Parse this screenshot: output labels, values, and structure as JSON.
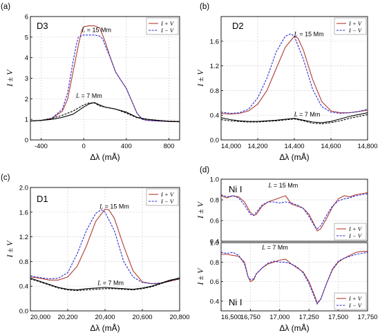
{
  "colors": {
    "red": "#b03a2e",
    "blue": "#2b2bd6",
    "black": "#000000",
    "grid": "#cfcfcf"
  },
  "chart_data": [
    {
      "panel_label": "(a)",
      "title": "D3",
      "type": "line",
      "xlabel": "Δλ (mÅ)",
      "ylabel": "I ± V",
      "xlim": [
        -500,
        900
      ],
      "ylim": [
        0,
        6
      ],
      "xticks": [
        -400,
        0,
        400,
        800
      ],
      "xtick_labels": [
        "-400",
        "0",
        "400",
        "800"
      ],
      "yticks": [
        0,
        1,
        2,
        3,
        4,
        5,
        6
      ],
      "ytick_labels": [
        "0",
        "1",
        "2",
        "3",
        "4",
        "5",
        "6"
      ],
      "annotations": [
        {
          "text": "L = 15 Mm",
          "x": 120,
          "y": 5.25
        },
        {
          "text": "L = 7 Mm",
          "x": 50,
          "y": 2.05
        }
      ],
      "legend": {
        "entries": [
          "I + V",
          "I − V"
        ],
        "position": "top-right"
      },
      "series": [
        {
          "name": "I + V",
          "group": "L = 15 Mm",
          "color": "#b03a2e",
          "dash": "solid",
          "x": [
            -500,
            -400,
            -300,
            -200,
            -150,
            -100,
            -50,
            -20,
            0,
            50,
            100,
            150,
            200,
            250,
            300,
            350,
            400,
            450,
            500,
            550,
            600,
            700,
            800,
            900
          ],
          "y": [
            0.92,
            0.95,
            1.05,
            1.4,
            2.0,
            3.3,
            4.6,
            5.3,
            5.5,
            5.55,
            5.55,
            5.45,
            4.8,
            4.0,
            3.3,
            2.9,
            2.5,
            1.9,
            1.3,
            1.0,
            0.95,
            0.92,
            0.9,
            0.9
          ]
        },
        {
          "name": "I − V",
          "group": "L = 15 Mm",
          "color": "#2b2bd6",
          "dash": "dashed",
          "x": [
            -500,
            -400,
            -300,
            -200,
            -150,
            -100,
            -70,
            -50,
            0,
            50,
            100,
            150,
            180,
            200,
            250,
            300,
            350,
            400,
            450,
            500,
            550,
            600,
            700,
            800,
            900
          ],
          "y": [
            0.92,
            0.95,
            1.05,
            1.5,
            2.3,
            3.8,
            4.6,
            5.0,
            5.1,
            5.1,
            5.1,
            5.05,
            4.9,
            4.6,
            4.0,
            3.3,
            2.9,
            2.5,
            1.9,
            1.3,
            1.0,
            0.95,
            0.92,
            0.9,
            0.9
          ]
        },
        {
          "name": "I + V",
          "group": "L = 7 Mm",
          "color": "#000000",
          "dash": "solid",
          "x": [
            -500,
            -400,
            -300,
            -200,
            -100,
            0,
            50,
            100,
            150,
            200,
            250,
            300,
            400,
            500,
            600,
            700,
            800,
            900
          ],
          "y": [
            0.92,
            0.95,
            1.0,
            1.1,
            1.25,
            1.6,
            1.75,
            1.82,
            1.7,
            1.6,
            1.55,
            1.5,
            1.35,
            1.1,
            1.0,
            0.95,
            0.9,
            0.88
          ]
        },
        {
          "name": "I − V",
          "group": "L = 7 Mm",
          "color": "#000000",
          "dash": "dashed",
          "x": [
            -500,
            -400,
            -300,
            -200,
            -100,
            0,
            50,
            100,
            150,
            200,
            250,
            300,
            400,
            500,
            600,
            700,
            800,
            900
          ],
          "y": [
            0.92,
            0.95,
            1.05,
            1.2,
            1.4,
            1.7,
            1.8,
            1.8,
            1.65,
            1.6,
            1.55,
            1.5,
            1.3,
            1.08,
            1.0,
            0.95,
            0.92,
            0.9
          ]
        }
      ]
    },
    {
      "panel_label": "(b)",
      "title": "D2",
      "type": "line",
      "xlabel": "Δλ (mÅ)",
      "ylabel": "I ± V",
      "xlim": [
        14000,
        14800
      ],
      "ylim": [
        0,
        2
      ],
      "xticks": [
        14000,
        14200,
        14400,
        14600,
        14800
      ],
      "xtick_labels": [
        "14,000",
        "14,200",
        "14,400",
        "14,600",
        "14,800"
      ],
      "yticks": [
        0.0,
        0.4,
        0.8,
        1.2,
        1.6
      ],
      "ytick_labels": [
        "0.0",
        "0.4",
        "0.8",
        "1.2",
        "1.6"
      ],
      "annotations": [
        {
          "text": "L = 15 Mm",
          "x": 14480,
          "y": 1.68
        },
        {
          "text": "L = 7 Mm",
          "x": 14470,
          "y": 0.38
        }
      ],
      "legend": {
        "entries": [
          "I + V",
          "I − V"
        ],
        "position": "top-right"
      },
      "series": [
        {
          "name": "I + V",
          "group": "L = 15 Mm",
          "color": "#b03a2e",
          "dash": "solid",
          "x": [
            14000,
            14050,
            14100,
            14150,
            14200,
            14250,
            14300,
            14350,
            14400,
            14420,
            14450,
            14500,
            14550,
            14600,
            14650,
            14700,
            14750,
            14800
          ],
          "y": [
            0.43,
            0.42,
            0.43,
            0.47,
            0.58,
            0.8,
            1.15,
            1.5,
            1.68,
            1.65,
            1.45,
            0.98,
            0.62,
            0.47,
            0.44,
            0.44,
            0.46,
            0.48
          ]
        },
        {
          "name": "I − V",
          "group": "L = 15 Mm",
          "color": "#2b2bd6",
          "dash": "dashed",
          "x": [
            14000,
            14050,
            14100,
            14150,
            14200,
            14250,
            14300,
            14350,
            14380,
            14400,
            14450,
            14500,
            14550,
            14600,
            14650,
            14700,
            14750,
            14800
          ],
          "y": [
            0.45,
            0.43,
            0.44,
            0.5,
            0.68,
            1.0,
            1.42,
            1.68,
            1.72,
            1.68,
            1.3,
            0.82,
            0.54,
            0.45,
            0.43,
            0.44,
            0.46,
            0.5
          ]
        },
        {
          "name": "I + V",
          "group": "L = 7 Mm",
          "color": "#000000",
          "dash": "solid",
          "x": [
            14000,
            14050,
            14100,
            14150,
            14200,
            14300,
            14400,
            14450,
            14500,
            14550,
            14600,
            14650,
            14700,
            14800
          ],
          "y": [
            0.36,
            0.33,
            0.31,
            0.3,
            0.3,
            0.32,
            0.35,
            0.32,
            0.29,
            0.28,
            0.3,
            0.34,
            0.38,
            0.44
          ]
        },
        {
          "name": "I − V",
          "group": "L = 7 Mm",
          "color": "#000000",
          "dash": "dashed",
          "x": [
            14000,
            14050,
            14100,
            14150,
            14200,
            14300,
            14400,
            14450,
            14500,
            14550,
            14600,
            14650,
            14700,
            14800
          ],
          "y": [
            0.33,
            0.31,
            0.3,
            0.29,
            0.29,
            0.31,
            0.34,
            0.31,
            0.27,
            0.26,
            0.28,
            0.31,
            0.35,
            0.41
          ]
        }
      ]
    },
    {
      "panel_label": "(c)",
      "title": "D1",
      "type": "line",
      "xlabel": "Δλ (mÅ)",
      "ylabel": "I ± V",
      "xlim": [
        20000,
        20800
      ],
      "ylim": [
        0,
        2
      ],
      "xticks": [
        20000,
        20200,
        20400,
        20600,
        20800
      ],
      "xtick_labels": [
        "20,000",
        "20,200",
        "20,400",
        "20,600",
        "20,800"
      ],
      "yticks": [
        0.0,
        0.4,
        0.8,
        1.2,
        1.6,
        2.0
      ],
      "ytick_labels": [
        "0.0",
        "0.4",
        "0.8",
        "1.2",
        "1.6",
        "2.0"
      ],
      "annotations": [
        {
          "text": "L = 15 Mm",
          "x": 20450,
          "y": 1.66
        },
        {
          "text": "L = 7 Mm",
          "x": 20430,
          "y": 0.42
        }
      ],
      "legend": {
        "entries": [
          "I + V",
          "I − V"
        ],
        "position": "top-right"
      },
      "series": [
        {
          "name": "I + V",
          "group": "L = 15 Mm",
          "color": "#b03a2e",
          "dash": "solid",
          "x": [
            20000,
            20050,
            20100,
            20150,
            20200,
            20250,
            20300,
            20350,
            20400,
            20420,
            20450,
            20500,
            20550,
            20600,
            20650,
            20700,
            20750,
            20800
          ],
          "y": [
            0.55,
            0.53,
            0.5,
            0.5,
            0.55,
            0.72,
            1.05,
            1.45,
            1.65,
            1.64,
            1.5,
            1.05,
            0.65,
            0.47,
            0.44,
            0.45,
            0.48,
            0.52
          ]
        },
        {
          "name": "I − V",
          "group": "L = 15 Mm",
          "color": "#2b2bd6",
          "dash": "dashed",
          "x": [
            20000,
            20050,
            20100,
            20150,
            20200,
            20250,
            20300,
            20350,
            20380,
            20400,
            20450,
            20500,
            20550,
            20600,
            20650,
            20700,
            20750,
            20800
          ],
          "y": [
            0.57,
            0.54,
            0.52,
            0.53,
            0.62,
            0.92,
            1.3,
            1.58,
            1.64,
            1.6,
            1.3,
            0.8,
            0.55,
            0.46,
            0.44,
            0.45,
            0.49,
            0.54
          ]
        },
        {
          "name": "I + V",
          "group": "L = 7 Mm",
          "color": "#000000",
          "dash": "solid",
          "x": [
            20000,
            20050,
            20100,
            20150,
            20200,
            20250,
            20300,
            20350,
            20400,
            20450,
            20500,
            20550,
            20600,
            20650,
            20700,
            20750,
            20800
          ],
          "y": [
            0.53,
            0.48,
            0.43,
            0.38,
            0.35,
            0.34,
            0.36,
            0.37,
            0.38,
            0.37,
            0.36,
            0.35,
            0.37,
            0.4,
            0.45,
            0.5,
            0.53
          ]
        },
        {
          "name": "I − V",
          "group": "L = 7 Mm",
          "color": "#000000",
          "dash": "dashed",
          "x": [
            20000,
            20050,
            20100,
            20150,
            20200,
            20250,
            20300,
            20350,
            20400,
            20450,
            20500,
            20550,
            20600,
            20650,
            20700,
            20750,
            20800
          ],
          "y": [
            0.52,
            0.47,
            0.42,
            0.37,
            0.34,
            0.33,
            0.34,
            0.35,
            0.36,
            0.36,
            0.35,
            0.34,
            0.36,
            0.39,
            0.44,
            0.49,
            0.52
          ]
        }
      ]
    },
    {
      "panel_label": "(d)",
      "title": "Ni I",
      "type": "line",
      "xlabel": "",
      "ylabel": "I ± V",
      "xlim": [
        16500,
        17750
      ],
      "ylim": [
        0.4,
        1.0
      ],
      "yticks": [
        0.4,
        0.6,
        0.8,
        1.0
      ],
      "ytick_labels": [
        "0.4",
        "0.6",
        "0.8",
        "1.0"
      ],
      "annotations": [
        {
          "text": "L = 15 Mm",
          "x": 17030,
          "y": 0.92
        }
      ],
      "legend": {
        "entries": [
          "I + V",
          "I − V"
        ],
        "position": "bottom-right"
      },
      "series": [
        {
          "name": "I + V",
          "group": "L = 15 Mm",
          "color": "#b03a2e",
          "dash": "solid",
          "x": [
            16500,
            16550,
            16600,
            16650,
            16700,
            16750,
            16780,
            16800,
            16850,
            16900,
            16950,
            17000,
            17050,
            17100,
            17150,
            17200,
            17250,
            17300,
            17320,
            17350,
            17400,
            17450,
            17500,
            17550,
            17600,
            17650,
            17700,
            17750
          ],
          "y": [
            0.84,
            0.82,
            0.84,
            0.83,
            0.78,
            0.68,
            0.65,
            0.66,
            0.74,
            0.78,
            0.8,
            0.82,
            0.84,
            0.76,
            0.74,
            0.72,
            0.66,
            0.55,
            0.5,
            0.52,
            0.62,
            0.73,
            0.81,
            0.84,
            0.83,
            0.85,
            0.86,
            0.87
          ]
        },
        {
          "name": "I − V",
          "group": "L = 15 Mm",
          "color": "#2b2bd6",
          "dash": "dashed",
          "x": [
            16500,
            16550,
            16600,
            16650,
            16700,
            16750,
            16780,
            16800,
            16850,
            16900,
            16950,
            17000,
            17050,
            17100,
            17150,
            17200,
            17250,
            17300,
            17320,
            17350,
            17400,
            17450,
            17500,
            17550,
            17600,
            17650,
            17700,
            17750
          ],
          "y": [
            0.85,
            0.83,
            0.84,
            0.82,
            0.75,
            0.66,
            0.65,
            0.68,
            0.75,
            0.78,
            0.78,
            0.77,
            0.78,
            0.77,
            0.75,
            0.72,
            0.64,
            0.54,
            0.52,
            0.55,
            0.65,
            0.74,
            0.79,
            0.81,
            0.82,
            0.84,
            0.85,
            0.86
          ]
        }
      ]
    },
    {
      "title": "Ni I",
      "type": "line",
      "xlabel": "Δλ (mÅ)",
      "ylabel": "I ± V",
      "xlim": [
        16500,
        17750
      ],
      "ylim": [
        0.3,
        1.0
      ],
      "xticks": [
        16500,
        16750,
        17000,
        17250,
        17500,
        17750
      ],
      "xtick_labels": [
        "16,500",
        "16,750",
        "17,000",
        "17,250",
        "17,500",
        "17,750"
      ],
      "yticks": [
        0.4,
        0.6,
        0.8,
        1.0
      ],
      "ytick_labels": [
        "0.4",
        "0.6",
        "0.8",
        "1.0"
      ],
      "annotations": [
        {
          "text": "L = 7 Mm",
          "x": 16960,
          "y": 0.93
        }
      ],
      "legend": {
        "entries": [
          "I + V",
          "I − V"
        ],
        "position": "bottom-right"
      },
      "series": [
        {
          "name": "I + V",
          "group": "L = 7 Mm",
          "color": "#b03a2e",
          "dash": "solid",
          "x": [
            16500,
            16550,
            16600,
            16650,
            16700,
            16730,
            16750,
            16780,
            16800,
            16850,
            16900,
            16950,
            17000,
            17050,
            17100,
            17150,
            17200,
            17250,
            17300,
            17320,
            17350,
            17400,
            17450,
            17500,
            17550,
            17600,
            17650,
            17700,
            17750
          ],
          "y": [
            0.88,
            0.88,
            0.87,
            0.86,
            0.8,
            0.65,
            0.6,
            0.62,
            0.68,
            0.74,
            0.78,
            0.8,
            0.82,
            0.83,
            0.78,
            0.74,
            0.7,
            0.6,
            0.45,
            0.38,
            0.42,
            0.58,
            0.72,
            0.8,
            0.84,
            0.87,
            0.9,
            0.91,
            0.91
          ]
        },
        {
          "name": "I − V",
          "group": "L = 7 Mm",
          "color": "#2b2bd6",
          "dash": "dashed",
          "x": [
            16500,
            16550,
            16600,
            16650,
            16700,
            16730,
            16750,
            16780,
            16800,
            16850,
            16900,
            16950,
            17000,
            17050,
            17100,
            17150,
            17200,
            17250,
            17300,
            17320,
            17350,
            17400,
            17450,
            17500,
            17550,
            17600,
            17650,
            17700,
            17750
          ],
          "y": [
            0.9,
            0.89,
            0.9,
            0.87,
            0.78,
            0.65,
            0.62,
            0.63,
            0.68,
            0.74,
            0.79,
            0.81,
            0.8,
            0.8,
            0.78,
            0.75,
            0.69,
            0.58,
            0.43,
            0.37,
            0.42,
            0.58,
            0.73,
            0.81,
            0.84,
            0.86,
            0.88,
            0.89,
            0.9
          ]
        }
      ]
    }
  ]
}
